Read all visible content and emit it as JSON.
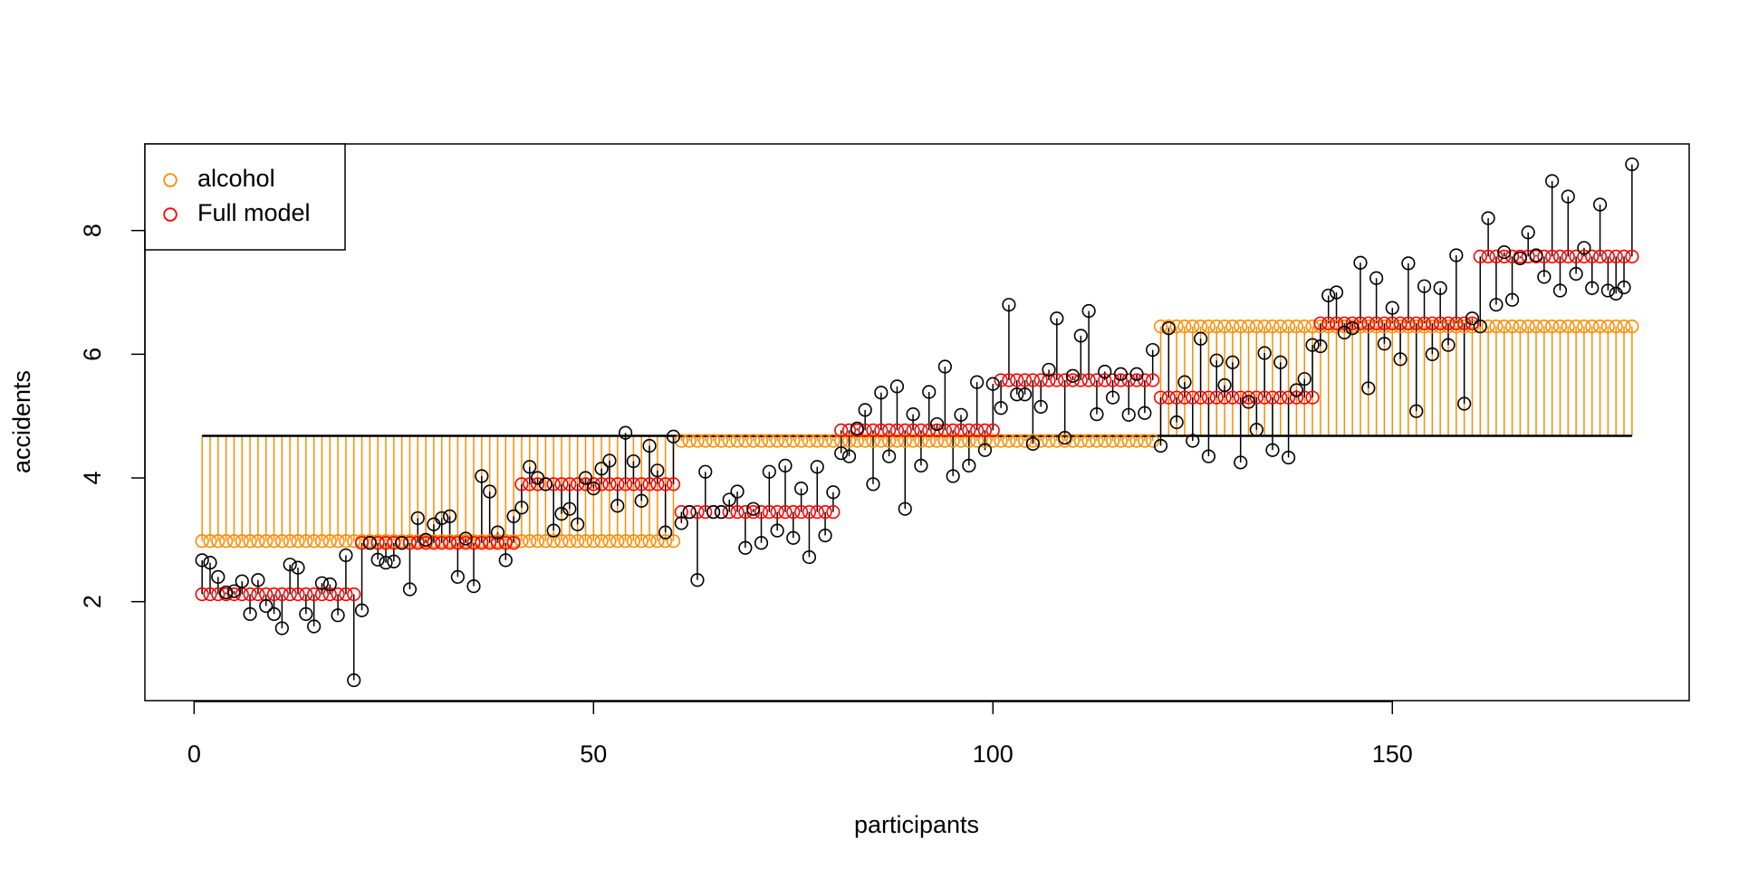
{
  "chart_data": {
    "type": "scatter",
    "x_label": "participants",
    "y_label": "accidents",
    "xlim": [
      -6.16,
      187.16
    ],
    "ylim": [
      0.4,
      9.4
    ],
    "xticks": [
      0,
      50,
      100,
      150
    ],
    "yticks": [
      2,
      4,
      6,
      8
    ],
    "legend_position": "topleft",
    "reference_line": 4.68,
    "x": [
      1,
      2,
      3,
      4,
      5,
      6,
      7,
      8,
      9,
      10,
      11,
      12,
      13,
      14,
      15,
      16,
      17,
      18,
      19,
      20,
      21,
      22,
      23,
      24,
      25,
      26,
      27,
      28,
      29,
      30,
      31,
      32,
      33,
      34,
      35,
      36,
      37,
      38,
      39,
      40,
      41,
      42,
      43,
      44,
      45,
      46,
      47,
      48,
      49,
      50,
      51,
      52,
      53,
      54,
      55,
      56,
      57,
      58,
      59,
      60,
      61,
      62,
      63,
      64,
      65,
      66,
      67,
      68,
      69,
      70,
      71,
      72,
      73,
      74,
      75,
      76,
      77,
      78,
      79,
      80,
      81,
      82,
      83,
      84,
      85,
      86,
      87,
      88,
      89,
      90,
      91,
      92,
      93,
      94,
      95,
      96,
      97,
      98,
      99,
      100,
      101,
      102,
      103,
      104,
      105,
      106,
      107,
      108,
      109,
      110,
      111,
      112,
      113,
      114,
      115,
      116,
      117,
      118,
      119,
      120,
      121,
      122,
      123,
      124,
      125,
      126,
      127,
      128,
      129,
      130,
      131,
      132,
      133,
      134,
      135,
      136,
      137,
      138,
      139,
      140,
      141,
      142,
      143,
      144,
      145,
      146,
      147,
      148,
      149,
      150,
      151,
      152,
      153,
      154,
      155,
      156,
      157,
      158,
      159,
      160,
      161,
      162,
      163,
      164,
      165,
      166,
      167,
      168,
      169,
      170,
      171,
      172,
      173,
      174,
      175,
      176,
      177,
      178,
      179,
      180
    ],
    "series": [
      {
        "color": "#000000",
        "values": [
          2.67,
          2.63,
          2.4,
          2.15,
          2.17,
          2.33,
          1.8,
          2.35,
          1.93,
          1.8,
          1.57,
          2.6,
          2.55,
          1.8,
          1.6,
          2.3,
          2.28,
          1.78,
          2.75,
          0.73,
          1.86,
          2.95,
          2.68,
          2.63,
          2.65,
          2.95,
          2.2,
          3.35,
          3.0,
          3.25,
          3.35,
          3.38,
          2.4,
          3.02,
          2.25,
          4.03,
          3.78,
          3.12,
          2.67,
          3.38,
          3.52,
          4.18,
          4.0,
          3.9,
          3.15,
          3.42,
          3.5,
          3.25,
          4.0,
          3.83,
          4.15,
          4.28,
          3.55,
          4.73,
          4.27,
          3.63,
          4.52,
          4.12,
          3.12,
          4.67,
          3.27,
          3.45,
          2.35,
          4.1,
          3.45,
          3.45,
          3.65,
          3.78,
          2.87,
          3.5,
          2.95,
          4.1,
          3.15,
          4.2,
          3.03,
          3.83,
          2.72,
          4.18,
          3.07,
          3.77,
          4.4,
          4.35,
          4.8,
          5.1,
          3.9,
          5.38,
          4.35,
          5.48,
          3.5,
          5.03,
          4.2,
          5.39,
          4.87,
          5.8,
          4.03,
          5.02,
          4.2,
          5.55,
          4.45,
          5.52,
          5.13,
          6.8,
          5.35,
          5.35,
          4.55,
          5.15,
          5.75,
          6.58,
          4.65,
          5.65,
          6.3,
          6.7,
          5.03,
          5.72,
          5.3,
          5.68,
          5.02,
          5.68,
          5.05,
          6.07,
          4.52,
          6.42,
          4.9,
          5.55,
          4.6,
          6.25,
          4.35,
          5.9,
          5.5,
          5.87,
          4.25,
          5.23,
          4.78,
          6.02,
          4.45,
          5.87,
          4.33,
          5.42,
          5.6,
          6.15,
          6.13,
          6.95,
          7.0,
          6.35,
          6.42,
          7.48,
          5.45,
          7.23,
          6.17,
          6.75,
          5.92,
          7.47,
          5.08,
          7.1,
          6.0,
          7.07,
          6.15,
          7.6,
          5.2,
          6.58,
          6.45,
          8.2,
          6.8,
          7.65,
          6.88,
          7.55,
          7.97,
          7.6,
          7.25,
          8.8,
          7.03,
          8.55,
          7.3,
          7.72,
          7.07,
          8.42,
          7.03,
          6.98,
          7.08,
          9.07
        ]
      },
      {
        "name": "alcohol",
        "color": "#ff8c00",
        "values": [
          2.98,
          2.98,
          2.98,
          2.98,
          2.98,
          2.98,
          2.98,
          2.98,
          2.98,
          2.98,
          2.98,
          2.98,
          2.98,
          2.98,
          2.98,
          2.98,
          2.98,
          2.98,
          2.98,
          2.98,
          2.98,
          2.98,
          2.98,
          2.98,
          2.98,
          2.98,
          2.98,
          2.98,
          2.98,
          2.98,
          2.98,
          2.98,
          2.98,
          2.98,
          2.98,
          2.98,
          2.98,
          2.98,
          2.98,
          2.98,
          2.98,
          2.98,
          2.98,
          2.98,
          2.98,
          2.98,
          2.98,
          2.98,
          2.98,
          2.98,
          2.98,
          2.98,
          2.98,
          2.98,
          2.98,
          2.98,
          2.98,
          2.98,
          2.98,
          2.98,
          4.6,
          4.6,
          4.6,
          4.6,
          4.6,
          4.6,
          4.6,
          4.6,
          4.6,
          4.6,
          4.6,
          4.6,
          4.6,
          4.6,
          4.6,
          4.6,
          4.6,
          4.6,
          4.6,
          4.6,
          4.6,
          4.6,
          4.6,
          4.6,
          4.6,
          4.6,
          4.6,
          4.6,
          4.6,
          4.6,
          4.6,
          4.6,
          4.6,
          4.6,
          4.6,
          4.6,
          4.6,
          4.6,
          4.6,
          4.6,
          4.6,
          4.6,
          4.6,
          4.6,
          4.6,
          4.6,
          4.6,
          4.6,
          4.6,
          4.6,
          4.6,
          4.6,
          4.6,
          4.6,
          4.6,
          4.6,
          4.6,
          4.6,
          4.6,
          4.6,
          6.45,
          6.45,
          6.45,
          6.45,
          6.45,
          6.45,
          6.45,
          6.45,
          6.45,
          6.45,
          6.45,
          6.45,
          6.45,
          6.45,
          6.45,
          6.45,
          6.45,
          6.45,
          6.45,
          6.45,
          6.45,
          6.45,
          6.45,
          6.45,
          6.45,
          6.45,
          6.45,
          6.45,
          6.45,
          6.45,
          6.45,
          6.45,
          6.45,
          6.45,
          6.45,
          6.45,
          6.45,
          6.45,
          6.45,
          6.45,
          6.45,
          6.45,
          6.45,
          6.45,
          6.45,
          6.45,
          6.45,
          6.45,
          6.45,
          6.45,
          6.45,
          6.45,
          6.45,
          6.45,
          6.45,
          6.45,
          6.45,
          6.45,
          6.45,
          6.45
        ]
      },
      {
        "name": "Full model",
        "color": "#ff0000",
        "values": [
          2.12,
          2.12,
          2.12,
          2.12,
          2.12,
          2.12,
          2.12,
          2.12,
          2.12,
          2.12,
          2.12,
          2.12,
          2.12,
          2.12,
          2.12,
          2.12,
          2.12,
          2.12,
          2.12,
          2.12,
          2.95,
          2.95,
          2.95,
          2.95,
          2.95,
          2.95,
          2.95,
          2.95,
          2.95,
          2.95,
          2.95,
          2.95,
          2.95,
          2.95,
          2.95,
          2.95,
          2.95,
          2.95,
          2.95,
          2.95,
          3.9,
          3.9,
          3.9,
          3.9,
          3.9,
          3.9,
          3.9,
          3.9,
          3.9,
          3.9,
          3.9,
          3.9,
          3.9,
          3.9,
          3.9,
          3.9,
          3.9,
          3.9,
          3.9,
          3.9,
          3.45,
          3.45,
          3.45,
          3.45,
          3.45,
          3.45,
          3.45,
          3.45,
          3.45,
          3.45,
          3.45,
          3.45,
          3.45,
          3.45,
          3.45,
          3.45,
          3.45,
          3.45,
          3.45,
          3.45,
          4.77,
          4.77,
          4.77,
          4.77,
          4.77,
          4.77,
          4.77,
          4.77,
          4.77,
          4.77,
          4.77,
          4.77,
          4.77,
          4.77,
          4.77,
          4.77,
          4.77,
          4.77,
          4.77,
          4.77,
          5.58,
          5.58,
          5.58,
          5.58,
          5.58,
          5.58,
          5.58,
          5.58,
          5.58,
          5.58,
          5.58,
          5.58,
          5.58,
          5.58,
          5.58,
          5.58,
          5.58,
          5.58,
          5.58,
          5.58,
          5.3,
          5.3,
          5.3,
          5.3,
          5.3,
          5.3,
          5.3,
          5.3,
          5.3,
          5.3,
          5.3,
          5.3,
          5.3,
          5.3,
          5.3,
          5.3,
          5.3,
          5.3,
          5.3,
          5.3,
          6.5,
          6.5,
          6.5,
          6.5,
          6.5,
          6.5,
          6.5,
          6.5,
          6.5,
          6.5,
          6.5,
          6.5,
          6.5,
          6.5,
          6.5,
          6.5,
          6.5,
          6.5,
          6.5,
          6.5,
          7.58,
          7.58,
          7.58,
          7.58,
          7.58,
          7.58,
          7.58,
          7.58,
          7.58,
          7.58,
          7.58,
          7.58,
          7.58,
          7.58,
          7.58,
          7.58,
          7.58,
          7.58,
          7.58,
          7.58
        ]
      }
    ]
  }
}
